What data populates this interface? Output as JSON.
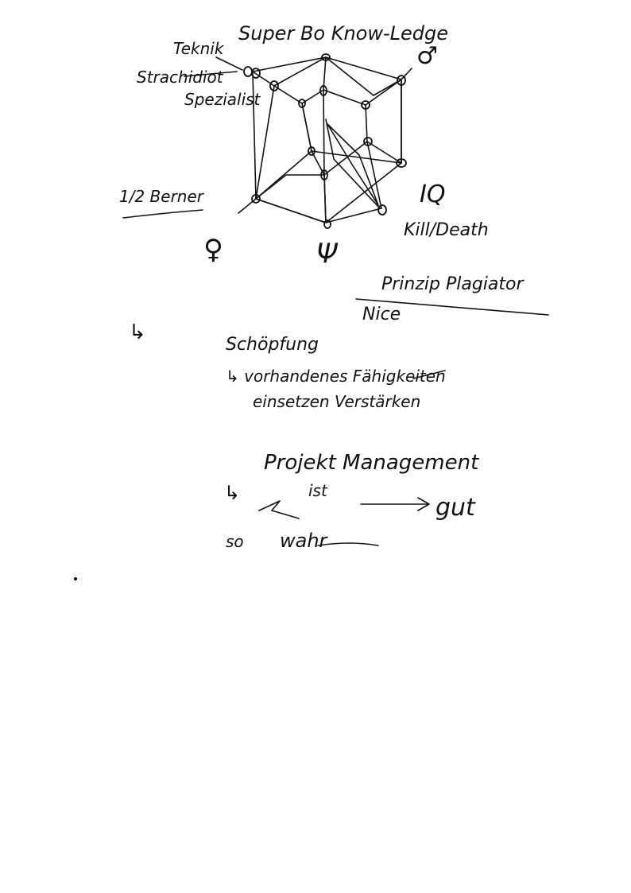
{
  "page": {
    "background": "#ffffff",
    "ink_color": "#111111"
  },
  "diagram": {
    "labels": {
      "super_knowledge": "Super Bo Know-Ledge",
      "technik": "Teknik",
      "strachidiot": "Strachidiot",
      "spezialist": "Spezialist",
      "half_berner": "1/2 Berner",
      "female": "♀",
      "psi": "Ψ",
      "male": "♂",
      "iq": "IQ",
      "kill_death": "Kill/Death"
    }
  },
  "notes": {
    "prinzip": "Prinzip Plagiator",
    "nice": "Nice",
    "bullet": "↳",
    "schoepfung": "Schöpfung",
    "vorhanden_line": "↳ vorhandenes Fähigkeiten",
    "einsetzen_line": "einsetzen   Verstärken",
    "projekt": "Projekt Management",
    "ist": "ist",
    "gut": "gut",
    "so": "so",
    "wahr": "wahr"
  }
}
